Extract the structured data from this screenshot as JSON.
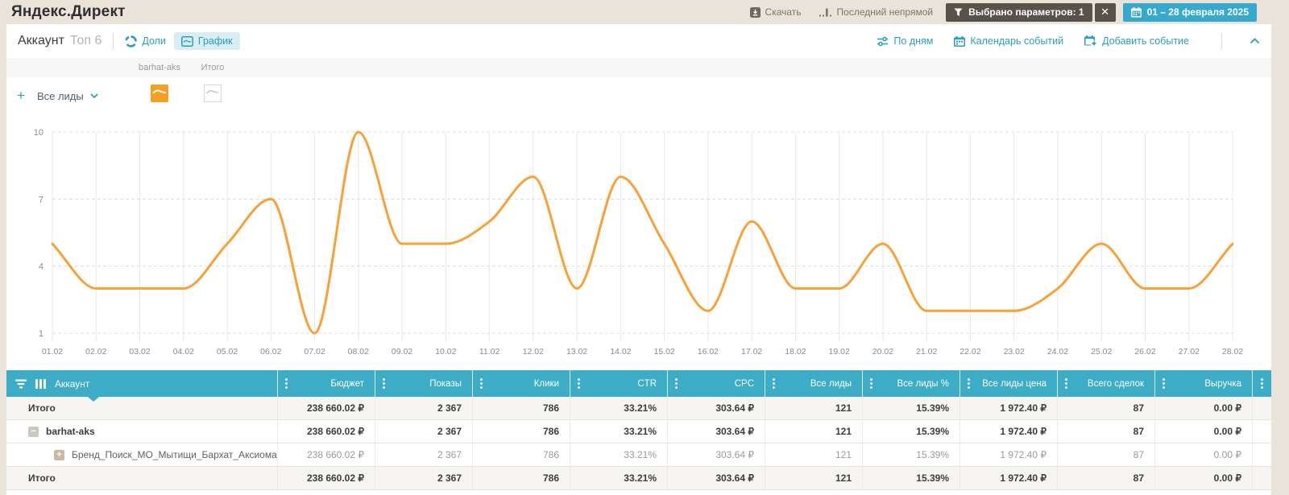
{
  "colors": {
    "accent_teal": "#2b9dbc",
    "table_header_teal": "#3dacc6",
    "date_button_teal": "#36a9cc",
    "dark_button": "#57524a",
    "series_orange": "#f9a137",
    "page_background": "#e9e3da"
  },
  "topbar": {
    "title": "Яндекс.Директ",
    "download_label": "Скачать",
    "attribution_label": "Последний непрямой",
    "params_button_label": "Выбрано параметров: 1",
    "close_button_label": "✕",
    "date_range_label": "01 – 28 февраля 2025"
  },
  "toolbar": {
    "entity_label": "Аккаунт",
    "top_label": "Топ 6",
    "shares_label": "Доли",
    "graph_label": "График",
    "by_days_label": "По дням",
    "events_calendar_label": "Календарь событий",
    "add_event_label": "Добавить событие"
  },
  "legend": {
    "metric_label": "Все лиды",
    "columns": [
      {
        "label": "barhat-aks",
        "active": true
      },
      {
        "label": "Итого",
        "active": false
      }
    ]
  },
  "chart_data": {
    "type": "line",
    "title": "",
    "series_name": "barhat-aks — Все лиды",
    "x": [
      "01.02",
      "02.02",
      "03.02",
      "04.02",
      "05.02",
      "06.02",
      "07.02",
      "08.02",
      "09.02",
      "10.02",
      "11.02",
      "12.02",
      "13.02",
      "14.02",
      "15.02",
      "16.02",
      "17.02",
      "18.02",
      "19.02",
      "20.02",
      "21.02",
      "22.02",
      "23.02",
      "24.02",
      "25.02",
      "26.02",
      "27.02",
      "28.02"
    ],
    "values": [
      5,
      3,
      3,
      3,
      5,
      7,
      1,
      10,
      5,
      5,
      6,
      8,
      3,
      8,
      5,
      2,
      6,
      3,
      3,
      5,
      2,
      2,
      2,
      3,
      5,
      3,
      3,
      5
    ],
    "xlabel": "",
    "ylabel": "",
    "ylim": [
      1,
      10
    ],
    "y_ticks": [
      1,
      4,
      7,
      10
    ],
    "grid": "vertical solid + horizontal dashed",
    "legend_position": "top-left table",
    "line_color": "#f9a137"
  },
  "table": {
    "columns": [
      "Аккаунт",
      "Бюджет",
      "Показы",
      "Клики",
      "CTR",
      "CPC",
      "Все лиды",
      "Все лиды %",
      "Все лиды цена",
      "Всего сделок",
      "Выручка"
    ],
    "rows": [
      {
        "label": "Итого",
        "type": "summary",
        "expander": null,
        "values": [
          "238 660.02 ₽",
          "2 367",
          "786",
          "33.21%",
          "303.64 ₽",
          "121",
          "15.39%",
          "1 972.40 ₽",
          "87",
          "0.00 ₽"
        ]
      },
      {
        "label": "barhat-aks",
        "type": "account",
        "expander": "minus",
        "values": [
          "238 660.02 ₽",
          "2 367",
          "786",
          "33.21%",
          "303.64 ₽",
          "121",
          "15.39%",
          "1 972.40 ₽",
          "87",
          "0.00 ₽"
        ]
      },
      {
        "label": "Бренд_Поиск_МО_Мытищи_Бархат_Аксиома_Веб",
        "type": "campaign",
        "expander": "plus",
        "values": [
          "238 660.02 ₽",
          "2 367",
          "786",
          "33.21%",
          "303.64 ₽",
          "121",
          "15.39%",
          "1 972.40 ₽",
          "87",
          "0.00 ₽"
        ]
      },
      {
        "label": "Итого",
        "type": "summary",
        "expander": null,
        "values": [
          "238 660.02 ₽",
          "2 367",
          "786",
          "33.21%",
          "303.64 ₽",
          "121",
          "15.39%",
          "1 972.40 ₽",
          "87",
          "0.00 ₽"
        ]
      }
    ]
  }
}
